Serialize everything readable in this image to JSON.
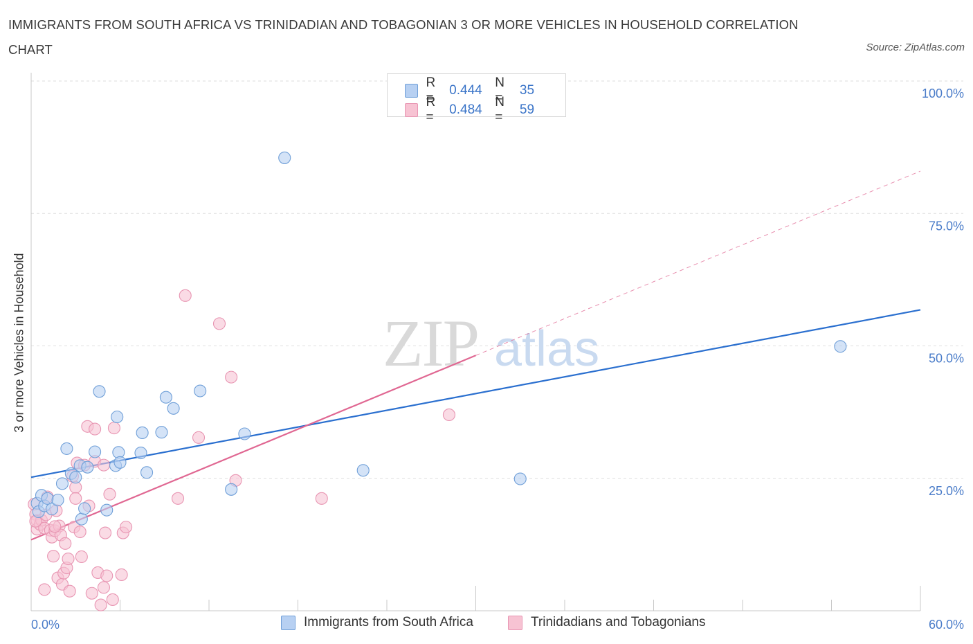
{
  "title": "IMMIGRANTS FROM SOUTH AFRICA VS TRINIDADIAN AND TOBAGONIAN 3 OR MORE VEHICLES IN HOUSEHOLD CORRELATION CHART",
  "source": "Source: ZipAtlas.com",
  "colors": {
    "blue_fill": "#b7d0f2",
    "blue_stroke": "#6f9fd8",
    "blue_line": "#2a6fcf",
    "pink_fill": "#f7c3d3",
    "pink_stroke": "#e895b2",
    "pink_line": "#e06792",
    "grid": "#dedede",
    "axis_text": "#4a7cc9"
  },
  "legend_top": {
    "series1": {
      "r_label": "R =",
      "r_value": "0.444",
      "n_label": "N =",
      "n_value": "35"
    },
    "series2": {
      "r_label": "R =",
      "r_value": "0.484",
      "n_label": "N =",
      "n_value": "59"
    }
  },
  "legend_bottom": {
    "series1": "Immigrants from South Africa",
    "series2": "Trinidadians and Tobagonians"
  },
  "watermark": {
    "part1": "ZIP",
    "part2": "atlas"
  },
  "chart_data": {
    "type": "scatter",
    "title": "IMMIGRANTS FROM SOUTH AFRICA VS TRINIDADIAN AND TOBAGONIAN 3 OR MORE VEHICLES IN HOUSEHOLD CORRELATION CHART",
    "xlabel": "",
    "ylabel": "3 or more Vehicles in Household",
    "xlim": [
      0,
      60
    ],
    "ylim": [
      0,
      100
    ],
    "x_tick_labels": [
      {
        "value": 0,
        "label": "0.0%"
      },
      {
        "value": 60,
        "label": "60.0%"
      }
    ],
    "y_tick_labels": [
      {
        "value": 25,
        "label": "25.0%"
      },
      {
        "value": 50,
        "label": "50.0%"
      },
      {
        "value": 75,
        "label": "75.0%"
      },
      {
        "value": 100,
        "label": "100.0%"
      }
    ],
    "grid": true,
    "series": [
      {
        "name": "Immigrants from South Africa",
        "color": "blue",
        "points": [
          [
            0.4,
            20.3
          ],
          [
            0.5,
            18.7
          ],
          [
            0.7,
            21.8
          ],
          [
            0.9,
            19.8
          ],
          [
            1.1,
            21.2
          ],
          [
            1.4,
            19.2
          ],
          [
            1.8,
            20.9
          ],
          [
            2.1,
            24.0
          ],
          [
            2.4,
            30.6
          ],
          [
            2.7,
            25.9
          ],
          [
            3.0,
            25.2
          ],
          [
            3.3,
            27.4
          ],
          [
            3.4,
            17.3
          ],
          [
            3.6,
            19.3
          ],
          [
            3.8,
            27.1
          ],
          [
            4.3,
            30.0
          ],
          [
            4.6,
            41.4
          ],
          [
            5.1,
            19.0
          ],
          [
            5.8,
            36.6
          ],
          [
            5.7,
            27.4
          ],
          [
            5.9,
            29.9
          ],
          [
            6.0,
            28.0
          ],
          [
            7.4,
            29.8
          ],
          [
            7.5,
            33.6
          ],
          [
            7.8,
            26.1
          ],
          [
            8.8,
            33.7
          ],
          [
            9.1,
            40.3
          ],
          [
            9.6,
            38.2
          ],
          [
            11.4,
            41.5
          ],
          [
            13.5,
            22.9
          ],
          [
            14.4,
            33.4
          ],
          [
            17.1,
            85.5
          ],
          [
            22.4,
            26.5
          ],
          [
            33.0,
            24.9
          ],
          [
            54.6,
            49.9
          ]
        ],
        "trend": {
          "x0": 0,
          "y0": 25.2,
          "x1": 60,
          "y1": 56.8
        }
      },
      {
        "name": "Trinidadians and Tobagonians",
        "color": "pink",
        "points": [
          [
            0.2,
            20.1
          ],
          [
            0.3,
            18.2
          ],
          [
            0.4,
            17.0
          ],
          [
            0.4,
            15.4
          ],
          [
            0.6,
            16.3
          ],
          [
            0.7,
            17.1
          ],
          [
            0.9,
            15.6
          ],
          [
            0.9,
            4.0
          ],
          [
            1.0,
            18.1
          ],
          [
            1.1,
            21.5
          ],
          [
            1.3,
            15.2
          ],
          [
            1.4,
            13.9
          ],
          [
            1.5,
            10.3
          ],
          [
            1.6,
            15.1
          ],
          [
            1.7,
            18.9
          ],
          [
            1.8,
            6.2
          ],
          [
            1.9,
            16.0
          ],
          [
            2.0,
            14.3
          ],
          [
            2.1,
            5.0
          ],
          [
            2.2,
            7.1
          ],
          [
            2.3,
            12.7
          ],
          [
            2.4,
            8.1
          ],
          [
            2.5,
            9.8
          ],
          [
            2.6,
            3.7
          ],
          [
            2.8,
            25.4
          ],
          [
            2.9,
            15.8
          ],
          [
            3.0,
            23.3
          ],
          [
            3.0,
            21.2
          ],
          [
            3.1,
            27.9
          ],
          [
            3.3,
            14.9
          ],
          [
            3.4,
            10.2
          ],
          [
            3.6,
            27.5
          ],
          [
            3.8,
            34.8
          ],
          [
            3.9,
            19.8
          ],
          [
            4.1,
            3.3
          ],
          [
            4.3,
            34.3
          ],
          [
            4.3,
            28.2
          ],
          [
            4.5,
            7.2
          ],
          [
            4.7,
            1.1
          ],
          [
            4.9,
            4.4
          ],
          [
            5.0,
            14.7
          ],
          [
            5.1,
            6.6
          ],
          [
            5.3,
            22.0
          ],
          [
            5.5,
            2.1
          ],
          [
            5.6,
            34.5
          ],
          [
            6.1,
            6.8
          ],
          [
            6.2,
            14.7
          ],
          [
            6.4,
            15.8
          ],
          [
            9.9,
            21.2
          ],
          [
            10.4,
            59.5
          ],
          [
            11.3,
            32.7
          ],
          [
            12.7,
            54.2
          ],
          [
            13.5,
            44.1
          ],
          [
            13.8,
            24.6
          ],
          [
            19.6,
            21.2
          ],
          [
            28.2,
            37.0
          ],
          [
            0.3,
            16.9
          ],
          [
            1.6,
            15.9
          ],
          [
            4.9,
            27.5
          ]
        ],
        "trend": {
          "x0": 0,
          "y0": 13.4,
          "x1": 30,
          "y1": 48.2
        },
        "trend_extension": {
          "x0": 30,
          "y0": 48.2,
          "x1": 60,
          "y1": 83.0
        }
      }
    ]
  }
}
